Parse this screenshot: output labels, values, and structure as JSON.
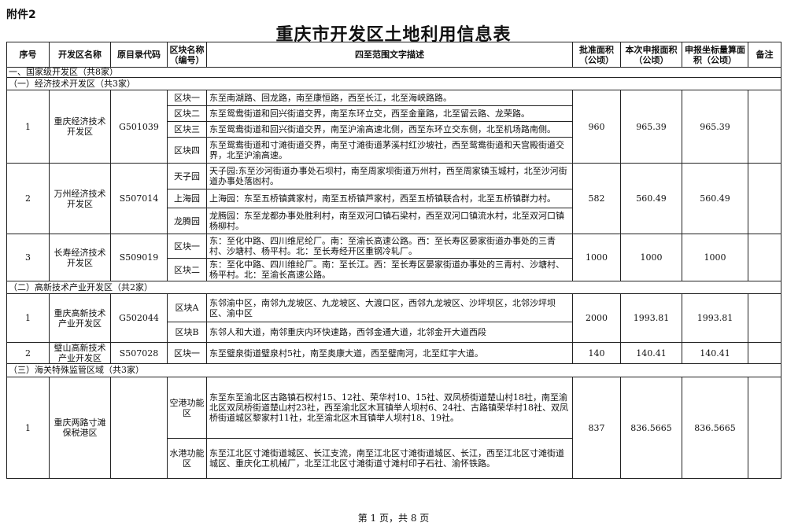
{
  "attachment_label": "附件2",
  "title": "重庆市开发区土地利用信息表",
  "table": {
    "headers": [
      "序号",
      "开发区名称",
      "原目录代码",
      "区块名称（编号）",
      "四至范围文字描述",
      "批准面积（公顷）",
      "本次申报面积（公顷）",
      "申报坐标量算面积（公顷）",
      "备注"
    ],
    "body": [
      {
        "type": "group",
        "label": "一、国家级开发区（共8家）"
      },
      {
        "type": "group",
        "label": "（一）经济技术开发区（共3家）"
      },
      {
        "type": "zone",
        "seq": "1",
        "name": "重庆经济技术开发区",
        "code": "G501039",
        "approved": "960",
        "reported": "965.39",
        "computed": "965.39",
        "remarks": "",
        "blocks": [
          {
            "name": "区块一",
            "desc": "东至南湖路、回龙路，南至康恒路，西至长江，北至海峡路路。"
          },
          {
            "name": "区块二",
            "desc": "东至鸳鸯街道和回兴街道交界，南至东环立交，西至金童路，北至留云路、龙荣路。"
          },
          {
            "name": "区块三",
            "desc": "东至鸳鸯街道和回兴街道交界，南至沪渝高速北侧，西至东环立交东侧，北至机场路南侧。"
          },
          {
            "name": "区块四",
            "desc": "东至鸳鸯街道和寸滩街道交界，南至寸滩街道茅溪村红沙坡社，西至鸳鸯街道和天宫殿街道交界，北至沪渝高速。"
          }
        ]
      },
      {
        "type": "zone",
        "seq": "2",
        "name": "万州经济技术开发区",
        "code": "S507014",
        "approved": "582",
        "reported": "560.49",
        "computed": "560.49",
        "remarks": "",
        "blocks": [
          {
            "name": "天子园",
            "desc": "天子园:东至沙河街道办事处石坝村，南至周家坝街道万州村，西至周家镇玉城村，北至沙河街道办事处落凼村。"
          },
          {
            "name": "上海园",
            "desc": "上海园：东至五桥镇龚家村，南至五桥镇芦家村，西至五桥镇联合村，北至五桥镇群力村。"
          },
          {
            "name": "龙腾园",
            "desc": "龙腾园：东至龙都办事处胜利村，南至双河口镇石梁村，西至双河口镇流水村，北至双河口镇杨柳村。"
          }
        ]
      },
      {
        "type": "zone",
        "seq": "3",
        "name": "长寿经济技术开发区",
        "code": "S509019",
        "approved": "1000",
        "reported": "1000",
        "computed": "1000",
        "remarks": "",
        "blocks": [
          {
            "name": "区块一",
            "desc": "东：至化中路、四川维尼纶厂。南：至渝长高速公路。西：至长寿区晏家街道办事处的三青村、沙塘村、杨平村。北：至长寿经开区重钢冷轧厂。"
          },
          {
            "name": "区块二",
            "desc": "东：至化中路、四川维纶厂。南：至长江。西：至长寿区晏家街道办事处的三青村、沙塘村、杨平村。北：至渝长高速公路。"
          }
        ]
      },
      {
        "type": "group",
        "label": "（二）高新技术产业开发区（共2家）"
      },
      {
        "type": "zone",
        "seq": "1",
        "name": "重庆高新技术产业开发区",
        "code": "G502044",
        "approved": "2000",
        "reported": "1993.81",
        "computed": "1993.81",
        "remarks": "",
        "blocks": [
          {
            "name": "区块A",
            "desc": "东邻渝中区，南邻九龙坡区、九龙坡区、大渡口区，西邻九龙坡区、沙坪坝区，北邻沙坪坝区、渝中区"
          },
          {
            "name": "区块B",
            "desc": "东邻人和大道，南邻重庆内环快速路，西邻金通大道，北邻金开大道西段"
          }
        ]
      },
      {
        "type": "zone",
        "seq": "2",
        "name": "璧山高新技术产业开发区",
        "code": "S507028",
        "approved": "140",
        "reported": "140.41",
        "computed": "140.41",
        "remarks": "",
        "blocks": [
          {
            "name": "区块一",
            "desc": "东至璧泉街道璧泉村5社，南至奥康大道，西至璧南河，北至红宇大道。"
          }
        ]
      },
      {
        "type": "group",
        "label": "（三）海关特殊监管区域（共3家）"
      },
      {
        "type": "zone",
        "seq": "1",
        "name": "重庆两路寸滩保税港区",
        "code": "",
        "approved": "837",
        "reported": "836.5665",
        "computed": "836.5665",
        "remarks": "",
        "blocks": [
          {
            "name": "空港功能区",
            "desc": "东至东至渝北区古路镇石权村15、12社、荣华村10、15社、双凤桥街道楚山村18社，南至渝北区双凤桥街道楚山村23社，西至渝北区木耳镇举人坝村6、24社、古路镇荣华村18社、双凤桥街道城区黎家村11社，北至渝北区木耳镇举人坝村18、19社。"
          },
          {
            "name": "水港功能区",
            "desc": "东至江北区寸滩街道城区、长江支流，南至江北区寸滩街道城区、长江，西至江北区寸滩街道城区、重庆化工机械厂，北至江北区寸滩街道寸滩村印子石社、渝怀铁路。"
          }
        ]
      }
    ]
  },
  "footer": "第 1 页，共 8 页"
}
